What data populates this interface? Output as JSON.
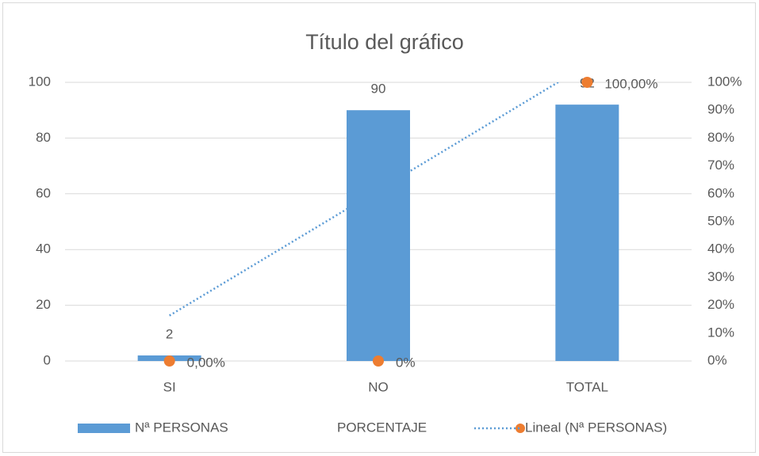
{
  "chart_data": {
    "type": "bar",
    "title": "Título del gráfico",
    "categories": [
      "SI",
      "NO",
      "TOTAL"
    ],
    "series": [
      {
        "name": "Nª PERSONAS",
        "type": "bar",
        "color": "#5b9bd5",
        "values": [
          2,
          90,
          92
        ]
      },
      {
        "name": "PORCENTAJE",
        "type": "scatter",
        "axis": "y2",
        "color": "#ed7d31",
        "values": [
          0,
          0,
          100
        ],
        "value_labels": [
          "0,00%",
          "0%",
          "100,00%"
        ]
      },
      {
        "name": "Lineal (Nª PERSONAS)",
        "type": "trendline",
        "color": "#5b9bd5",
        "values": [
          16.3,
          61.3,
          106.3
        ]
      }
    ],
    "ylim": [
      0,
      100
    ],
    "yticks": [
      0,
      20,
      40,
      60,
      80,
      100
    ],
    "y2lim": [
      0,
      100
    ],
    "y2ticks": [
      {
        "value": 0,
        "label": "0%"
      },
      {
        "value": 10,
        "label": "10%"
      },
      {
        "value": 20,
        "label": "20%"
      },
      {
        "value": 30,
        "label": "30%"
      },
      {
        "value": 40,
        "label": "40%"
      },
      {
        "value": 50,
        "label": "50%"
      },
      {
        "value": 60,
        "label": "60%"
      },
      {
        "value": 70,
        "label": "70%"
      },
      {
        "value": 80,
        "label": "80%"
      },
      {
        "value": 90,
        "label": "90%"
      },
      {
        "value": 100,
        "label": "100%"
      }
    ],
    "grid": true,
    "legend": "bottom"
  }
}
